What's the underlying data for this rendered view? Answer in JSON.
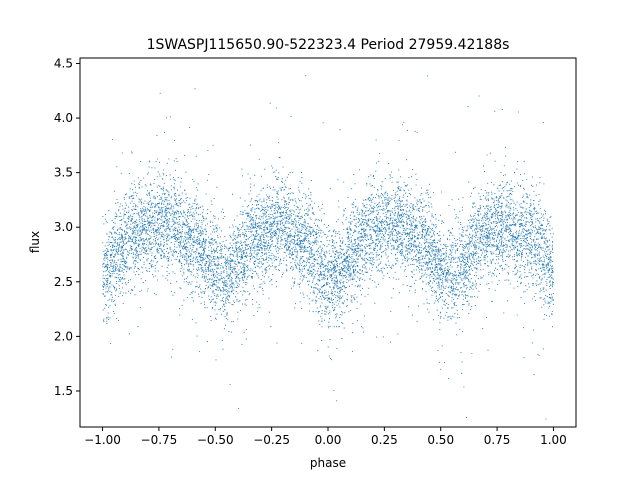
{
  "chart_data": {
    "type": "scatter",
    "title": "1SWASPJ115650.90-522323.4 Period 27959.42188s",
    "xlabel": "phase",
    "ylabel": "flux",
    "xlim": [
      -1.1,
      1.1
    ],
    "ylim": [
      1.17,
      4.55
    ],
    "x_ticks": [
      -1.0,
      -0.75,
      -0.5,
      -0.25,
      0.0,
      0.25,
      0.5,
      0.75,
      1.0
    ],
    "x_tick_labels": [
      "−1.00",
      "−0.75",
      "−0.50",
      "−0.25",
      "0.00",
      "0.25",
      "0.50",
      "0.75",
      "1.00"
    ],
    "y_ticks": [
      1.5,
      2.0,
      2.5,
      3.0,
      3.5,
      4.0,
      4.5
    ],
    "y_tick_labels": [
      "1.5",
      "2.0",
      "2.5",
      "3.0",
      "3.5",
      "4.0",
      "4.5"
    ],
    "grid": false,
    "legend": "none",
    "marker_color": "#1f77b4",
    "profile": {
      "phase": [
        -1.0,
        -0.9,
        -0.8,
        -0.7,
        -0.6,
        -0.5,
        -0.45,
        -0.4,
        -0.3,
        -0.2,
        -0.1,
        0.0,
        0.05,
        0.1,
        0.2,
        0.3,
        0.4,
        0.5,
        0.55,
        0.6,
        0.7,
        0.8,
        0.9,
        1.0
      ],
      "flux": [
        2.6,
        2.85,
        3.0,
        3.02,
        2.88,
        2.62,
        2.55,
        2.7,
        2.95,
        3.0,
        2.85,
        2.55,
        2.58,
        2.75,
        2.95,
        3.02,
        2.92,
        2.62,
        2.55,
        2.65,
        2.95,
        3.02,
        2.88,
        2.6
      ]
    },
    "scatter_sd": 0.22,
    "point_count": 9000
  }
}
